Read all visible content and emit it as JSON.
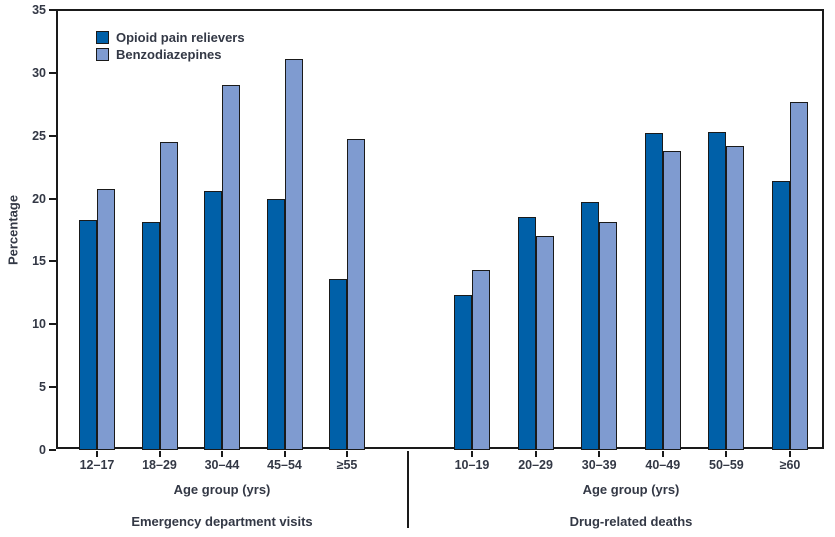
{
  "chart_data": {
    "type": "bar",
    "ylabel": "Percentage",
    "ylim": [
      0,
      35
    ],
    "ytick_step": 5,
    "grid": false,
    "legend_position": "top-left-inside",
    "colors": {
      "opioid": "#0060A8",
      "benzodiazepine": "#7F9BD0",
      "axis": "#1a1a1a",
      "text": "#333845"
    },
    "groups": [
      {
        "label": "Emergency department visits",
        "xlabel": "Age group (yrs)",
        "categories": [
          "12–17",
          "18–29",
          "30–44",
          "45–54",
          "≥55"
        ],
        "series": [
          {
            "name": "Opioid pain relievers",
            "color": "#0060A8",
            "values": [
              18.3,
              18.1,
              20.6,
              20.0,
              13.6
            ]
          },
          {
            "name": "Benzodiazepines",
            "color": "#7F9BD0",
            "values": [
              20.8,
              24.5,
              29.0,
              31.1,
              24.7
            ]
          }
        ]
      },
      {
        "label": "Drug-related deaths",
        "xlabel": "Age group (yrs)",
        "categories": [
          "10–19",
          "20–29",
          "30–39",
          "40–49",
          "50–59",
          "≥60"
        ],
        "series": [
          {
            "name": "Opioid pain relievers",
            "color": "#0060A8",
            "values": [
              12.3,
              18.5,
              19.7,
              25.2,
              25.3,
              21.4
            ]
          },
          {
            "name": "Benzodiazepines",
            "color": "#7F9BD0",
            "values": [
              14.3,
              17.0,
              18.1,
              23.8,
              24.2,
              27.7
            ]
          }
        ]
      }
    ]
  }
}
